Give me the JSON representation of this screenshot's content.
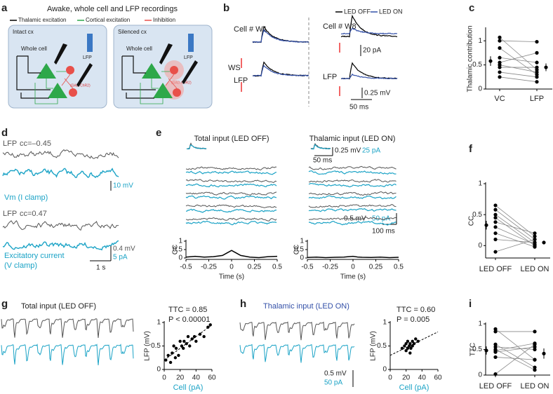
{
  "panel_letters": [
    "a",
    "b",
    "c",
    "d",
    "e",
    "f",
    "g",
    "h",
    "i"
  ],
  "a": {
    "title": "Awake, whole cell and LFP recordings",
    "legend": [
      "Thalamic excitation",
      "Cortical excitation",
      "Inhibition"
    ],
    "left_box": "Intact cx",
    "right_box": "Silenced cx",
    "whole_cell": "Whole cell",
    "lfp": "LFP",
    "gad": "(GAD-ChR2)"
  },
  "b": {
    "legend": [
      "LED OFF",
      "LED ON"
    ],
    "cell1": "Cell # W1",
    "cell2": "Cell # W8",
    "ws": "WS",
    "lfp": "LFP",
    "scale_pa": "20 pA",
    "scale_mv": "0.25 mV",
    "scale_ms": "50 ms"
  },
  "d": {
    "lfp": "LFP",
    "cc1": "cc=–0.45",
    "vm": "Vm (I clamp)",
    "scale1": "10 mV",
    "cc2": "cc=0.47",
    "exc": "Excitatory current",
    "vclamp": "(V clamp)",
    "scale2a": "0.4 mV",
    "scale2b": "5 pA",
    "scale_t": "1 s"
  },
  "e": {
    "title_left": "Total input (LED OFF)",
    "title_right": "Thalamic input (LED ON)",
    "inset_mv": "0.25 mV",
    "inset_pa": "25 pA",
    "inset_ms": "50 ms",
    "scale_mv": "0.5 mV",
    "scale_pa": "50 pA",
    "scale_ms": "100 ms"
  },
  "g": {
    "title": "Total input (LED OFF)"
  },
  "h": {
    "title": "Thalamic input (LED ON)",
    "scale_mv": "0.5 mV",
    "scale_pa": "50 pA"
  },
  "chart_data": [
    {
      "type": "paired_dot",
      "ylabel": "Thalamic contribution",
      "categories": [
        "VC",
        "LFP"
      ],
      "ylim": [
        0,
        1.25
      ],
      "yticks": [
        0,
        0.5,
        1
      ],
      "paired": [
        [
          1.07,
          0.4
        ],
        [
          1.0,
          0.98
        ],
        [
          0.85,
          0.3
        ],
        [
          0.65,
          0.55
        ],
        [
          0.55,
          0.75
        ],
        [
          0.5,
          0.35
        ],
        [
          0.45,
          0.45
        ],
        [
          0.35,
          0.25
        ],
        [
          0.25,
          0.15
        ]
      ],
      "mean": [
        0.58,
        0.45
      ],
      "error": [
        0.1,
        0.08
      ],
      "color": "#000000"
    },
    {
      "type": "line",
      "ylabel": "CC",
      "xlabel": "Time (s)",
      "xlim": [
        -0.5,
        0.5
      ],
      "xticks": [
        -0.5,
        -0.25,
        0,
        0.25,
        0.5
      ],
      "ylim": [
        0,
        1
      ],
      "yticks": [
        0,
        0.5,
        1
      ],
      "x": [
        -0.5,
        -0.4,
        -0.3,
        -0.2,
        -0.1,
        -0.05,
        0,
        0.05,
        0.1,
        0.2,
        0.3,
        0.4,
        0.5
      ],
      "values": [
        0.05,
        0.1,
        0.05,
        0.08,
        0.15,
        0.3,
        0.45,
        0.3,
        0.15,
        0.05,
        0.02,
        0.08,
        0.1
      ],
      "color": "#000000"
    },
    {
      "type": "line",
      "ylabel": "CC",
      "xlabel": "Time (s)",
      "xlim": [
        -0.5,
        0.5
      ],
      "xticks": [
        -0.5,
        -0.25,
        0,
        0.25,
        0.5
      ],
      "ylim": [
        0,
        1
      ],
      "yticks": [
        0,
        0.5,
        1
      ],
      "x": [
        -0.5,
        -0.4,
        -0.3,
        -0.2,
        -0.1,
        -0.05,
        0,
        0.05,
        0.1,
        0.2,
        0.3,
        0.4,
        0.5
      ],
      "values": [
        0.03,
        0.05,
        0.02,
        0.04,
        0.05,
        0.08,
        0.1,
        0.06,
        0.04,
        0.03,
        0.05,
        0.02,
        0.04
      ],
      "color": "#000000"
    },
    {
      "type": "paired_dot",
      "ylabel": "CC",
      "categories": [
        "LED OFF",
        "LED ON"
      ],
      "ylim": [
        -0.2,
        1
      ],
      "yticks": [
        0,
        0.5,
        1
      ],
      "paired": [
        [
          0.65,
          0.15
        ],
        [
          0.58,
          0.1
        ],
        [
          0.5,
          0.05
        ],
        [
          0.45,
          0.0
        ],
        [
          0.38,
          0.2
        ],
        [
          0.3,
          0.02
        ],
        [
          0.2,
          -0.02
        ],
        [
          0.1,
          0.05
        ],
        [
          -0.1,
          0.1
        ]
      ],
      "mean": [
        0.33,
        0.05
      ],
      "error": [
        0.07,
        0.03
      ],
      "color": "#000000"
    },
    {
      "type": "scatter",
      "xlabel": "Cell (pA)",
      "ylabel": "LFP (mV)",
      "annotations": [
        "TTC = 0.85",
        "P < 0.00001"
      ],
      "xlim": [
        0,
        60
      ],
      "xticks": [
        0,
        20,
        40,
        60
      ],
      "ylim": [
        0,
        1
      ],
      "yticks": [
        0,
        0.5,
        1
      ],
      "x": [
        2,
        5,
        8,
        10,
        12,
        14,
        15,
        18,
        20,
        22,
        24,
        25,
        28,
        30,
        32,
        35,
        38,
        40,
        45,
        50,
        55,
        58
      ],
      "values": [
        0.2,
        0.3,
        0.15,
        0.35,
        0.5,
        0.25,
        0.45,
        0.3,
        0.6,
        0.5,
        0.45,
        0.6,
        0.55,
        0.7,
        0.5,
        0.65,
        0.7,
        0.6,
        0.75,
        0.7,
        0.9,
        0.95
      ],
      "fit": {
        "x": [
          0,
          60
        ],
        "values": [
          0.2,
          0.95
        ]
      },
      "color": "#000000"
    },
    {
      "type": "scatter",
      "xlabel": "Cell (pA)",
      "ylabel": "LFP (mV)",
      "annotations": [
        "TTC = 0.60",
        "P = 0.005"
      ],
      "xlim": [
        0,
        60
      ],
      "xticks": [
        0,
        20,
        40,
        60
      ],
      "ylim": [
        0,
        1
      ],
      "yticks": [
        0,
        0.5,
        1
      ],
      "x": [
        15,
        18,
        20,
        20,
        22,
        22,
        24,
        25,
        25,
        26,
        28,
        28,
        30,
        32,
        35
      ],
      "values": [
        0.45,
        0.5,
        0.4,
        0.55,
        0.45,
        0.6,
        0.5,
        0.35,
        0.55,
        0.45,
        0.5,
        0.6,
        0.55,
        0.65,
        0.6
      ],
      "fit": {
        "x": [
          0,
          60
        ],
        "values": [
          0.3,
          0.8
        ]
      },
      "color": "#000000"
    },
    {
      "type": "paired_dot",
      "ylabel": "TTC",
      "categories": [
        "LED OFF",
        "LED ON"
      ],
      "ylim": [
        0,
        1
      ],
      "yticks": [
        0,
        0.5,
        1
      ],
      "paired": [
        [
          0.9,
          0.3
        ],
        [
          0.85,
          0.85
        ],
        [
          0.6,
          0.15
        ],
        [
          0.55,
          0.5
        ],
        [
          0.5,
          0.1
        ],
        [
          0.48,
          0.62
        ],
        [
          0.45,
          0.55
        ],
        [
          0.35,
          0.3
        ],
        [
          0.02,
          0.6
        ]
      ],
      "mean": [
        0.48,
        0.42
      ],
      "error": [
        0.08,
        0.1
      ],
      "color": "#000000"
    }
  ]
}
